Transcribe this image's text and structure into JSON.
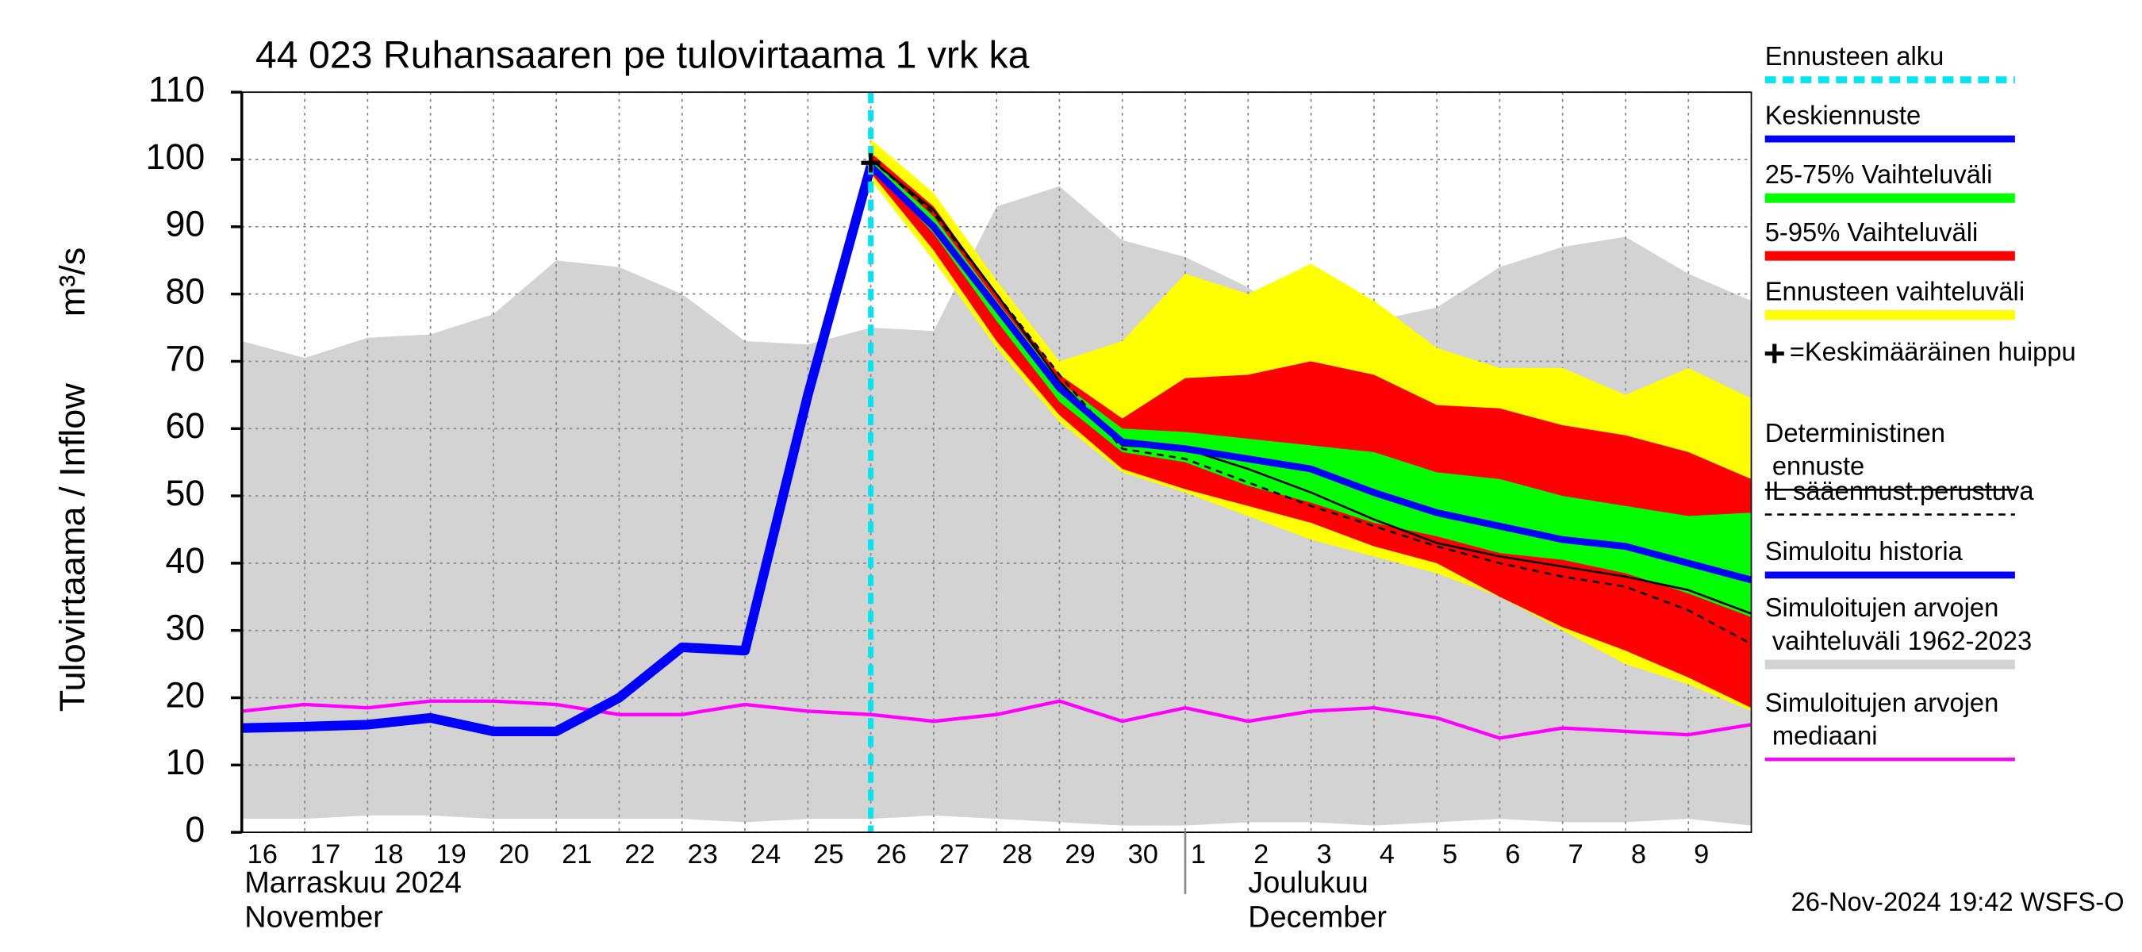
{
  "chart_data": {
    "type": "line",
    "title": "44 023 Ruhansaaren pe tulovirtaama 1 vrk ka",
    "y_label": "Tulovirtaama / Inflow",
    "y_unit": "m³/s",
    "categories": [
      "16",
      "17",
      "18",
      "19",
      "20",
      "21",
      "22",
      "23",
      "24",
      "25",
      "26",
      "27",
      "28",
      "29",
      "30",
      "1",
      "2",
      "3",
      "4",
      "5",
      "6",
      "7",
      "8",
      "9",
      null
    ],
    "month_labels": [
      {
        "label": "Marraskuu 2024",
        "label_en": "November"
      },
      {
        "label": "Joulukuu",
        "label_en": "December"
      }
    ],
    "ylim": [
      0,
      110
    ],
    "yticks": [
      0,
      10,
      20,
      30,
      40,
      50,
      60,
      70,
      80,
      90,
      100,
      110
    ],
    "grid": true,
    "forecast_start": {
      "name": "Ennusteen alku",
      "index": 10,
      "color": "#00e5ee"
    },
    "peak": {
      "name": "=Keskimääräinen huippu",
      "index": 10,
      "value": 99.5,
      "color": "#000000"
    },
    "bands": [
      {
        "name": "25-75% Vaihteluväli",
        "color": "#00ff00",
        "upper": [
          null,
          null,
          null,
          null,
          null,
          null,
          null,
          null,
          null,
          null,
          100,
          91.5,
          79,
          67,
          60,
          59.5,
          58.5,
          57.5,
          56.5,
          53.5,
          52.5,
          50,
          48.5,
          47,
          47.5
        ],
        "lower": [
          null,
          null,
          null,
          null,
          null,
          null,
          null,
          null,
          null,
          null,
          99,
          89,
          76,
          64,
          56.5,
          55,
          51.5,
          49,
          46,
          44,
          41.5,
          40.5,
          38.5,
          35.5,
          32
        ]
      },
      {
        "name": "5-95% Vaihteluväli",
        "color": "#ff0000",
        "upper": [
          null,
          null,
          null,
          null,
          null,
          null,
          null,
          null,
          null,
          null,
          101,
          93,
          80,
          68,
          61.5,
          67.5,
          68,
          70,
          68,
          63.5,
          63,
          60.5,
          59,
          56.5,
          52.5
        ],
        "lower": [
          null,
          null,
          null,
          null,
          null,
          null,
          null,
          null,
          null,
          null,
          98,
          86.5,
          73,
          62,
          54,
          51,
          48.5,
          46,
          42.5,
          40,
          35,
          30.5,
          27,
          23,
          18.5
        ]
      },
      {
        "name": "Ennusteen vaihteluväli",
        "color": "#ffff00",
        "upper": [
          null,
          null,
          null,
          null,
          null,
          null,
          null,
          null,
          null,
          null,
          103,
          95,
          82,
          70,
          73,
          83,
          80,
          84.5,
          79,
          72,
          69,
          69,
          65,
          69,
          64.5
        ],
        "lower": [
          null,
          null,
          null,
          null,
          null,
          null,
          null,
          null,
          null,
          null,
          97,
          85,
          72,
          61,
          53.5,
          50.5,
          47,
          43.5,
          41,
          38.5,
          35,
          30,
          25,
          22,
          18
        ]
      },
      {
        "name": "Simuloitujen arvojen vaihteluväli 1962-2023",
        "color": "#d3d3d3",
        "upper": [
          73,
          70.5,
          73.5,
          74,
          77,
          85,
          84,
          80,
          73,
          72.5,
          75,
          74.5,
          93,
          96,
          88,
          85.5,
          81,
          74,
          76,
          78,
          84,
          87,
          88.5,
          83,
          79
        ],
        "lower": [
          2,
          2,
          2.5,
          2.5,
          2,
          2,
          2,
          2,
          1.5,
          2,
          2,
          2.5,
          2,
          1.5,
          1,
          1,
          1.5,
          1.5,
          1,
          1.5,
          2,
          1.5,
          1.5,
          2,
          1
        ]
      }
    ],
    "series": [
      {
        "name": "Keskiennuste",
        "color": "#0000ff",
        "linestyle": "solid",
        "values": [
          null,
          null,
          null,
          null,
          null,
          null,
          null,
          null,
          null,
          null,
          99,
          90,
          78,
          66,
          58,
          57,
          55.5,
          54,
          50.5,
          47.5,
          45.5,
          43.5,
          42.5,
          40,
          37.5
        ]
      },
      {
        "name": "Deterministinen ennuste",
        "color": "#000000",
        "linestyle": "solid",
        "values": [
          null,
          null,
          null,
          null,
          null,
          null,
          null,
          null,
          null,
          null,
          100,
          92.5,
          80,
          67,
          57.5,
          57,
          54,
          50.5,
          46.5,
          43,
          41,
          39.5,
          38,
          36,
          32.5
        ]
      },
      {
        "name": "IL sääennust.perustuva",
        "color": "#000000",
        "linestyle": "dashed",
        "values": [
          null,
          null,
          null,
          null,
          null,
          null,
          null,
          null,
          null,
          null,
          100,
          92,
          80,
          68,
          57,
          55.5,
          52,
          48.5,
          45.5,
          42.5,
          40,
          38,
          36.5,
          33,
          28
        ]
      },
      {
        "name": "Simuloitu historia",
        "color": "#0000ff",
        "linestyle": "solid",
        "values": [
          15.5,
          15.7,
          16,
          17,
          15,
          15,
          20,
          27.5,
          27,
          65,
          99,
          null,
          null,
          null,
          null,
          null,
          null,
          null,
          null,
          null,
          null,
          null,
          null,
          null,
          null
        ]
      },
      {
        "name": "Simuloitujen arvojen mediaani",
        "color": "#ff00ff",
        "linestyle": "solid",
        "values": [
          18,
          19,
          18.5,
          19.5,
          19.5,
          19,
          17.5,
          17.5,
          19,
          18,
          17.5,
          16.5,
          17.5,
          19.5,
          16.5,
          18.5,
          16.5,
          18,
          18.5,
          17,
          14,
          15.5,
          15,
          14.5,
          16
        ]
      }
    ],
    "timestamp": "26-Nov-2024 19:42 WSFS-O"
  }
}
